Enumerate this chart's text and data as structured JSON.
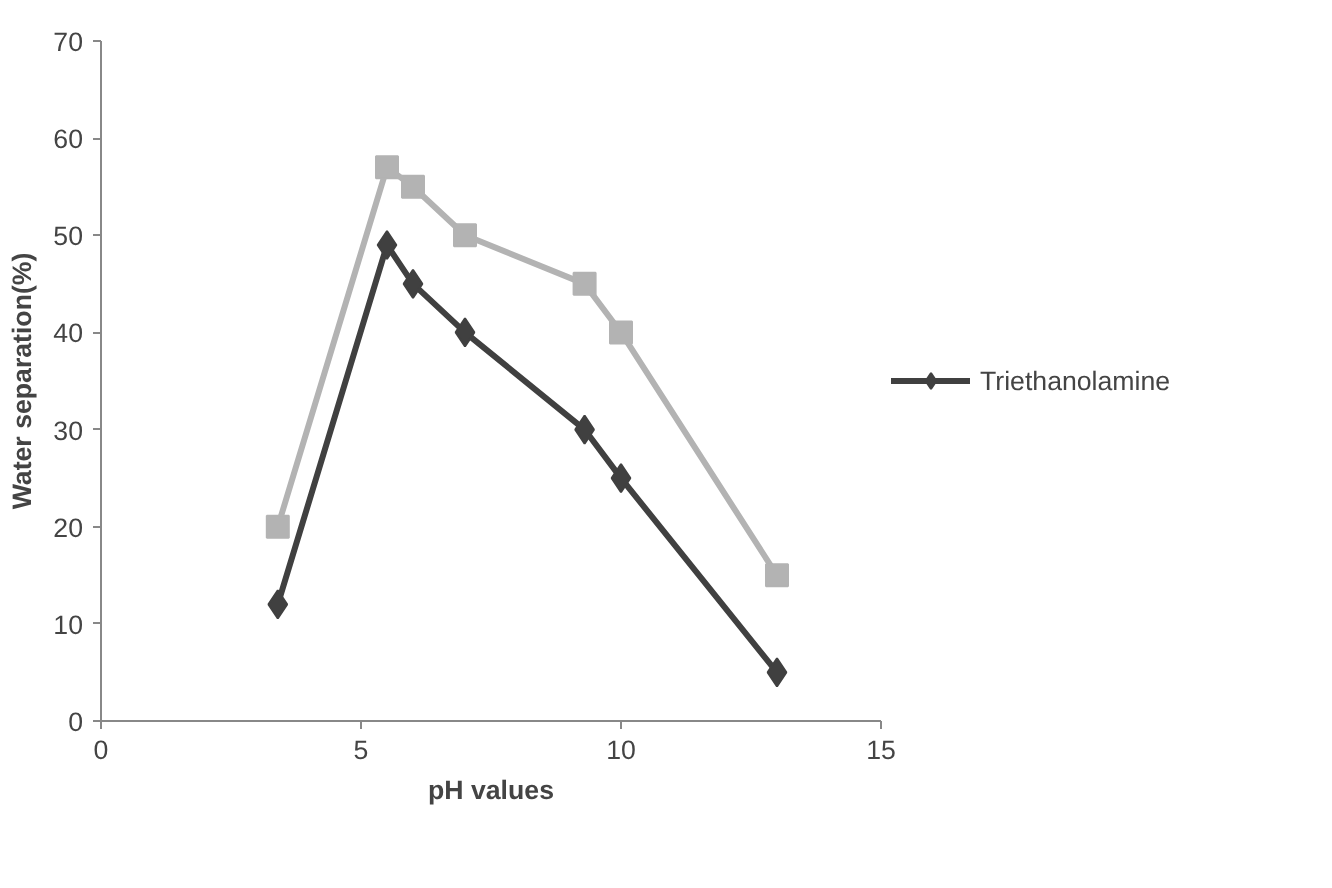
{
  "chart_data": {
    "type": "line",
    "xlabel": "pH values",
    "ylabel": "Water separation(%)",
    "xlim": [
      0,
      15
    ],
    "xticks": [
      0,
      5,
      10,
      15
    ],
    "ylim": [
      0,
      70
    ],
    "yticks": [
      0,
      10,
      20,
      30,
      40,
      50,
      60,
      70
    ],
    "grid": false,
    "legend": "right",
    "series": [
      {
        "name": "Triethanolamine",
        "color": "#404040",
        "marker": "diamond",
        "x": [
          3.4,
          5.5,
          6,
          7,
          9.3,
          10,
          13
        ],
        "values": [
          12,
          49,
          45,
          40,
          30,
          25,
          5
        ]
      },
      {
        "color": "#b3b3b3",
        "marker": "square",
        "x": [
          3.4,
          5.5,
          6,
          7,
          9.3,
          10,
          13
        ],
        "values": [
          20,
          57,
          55,
          50,
          45,
          40,
          15
        ]
      }
    ]
  }
}
